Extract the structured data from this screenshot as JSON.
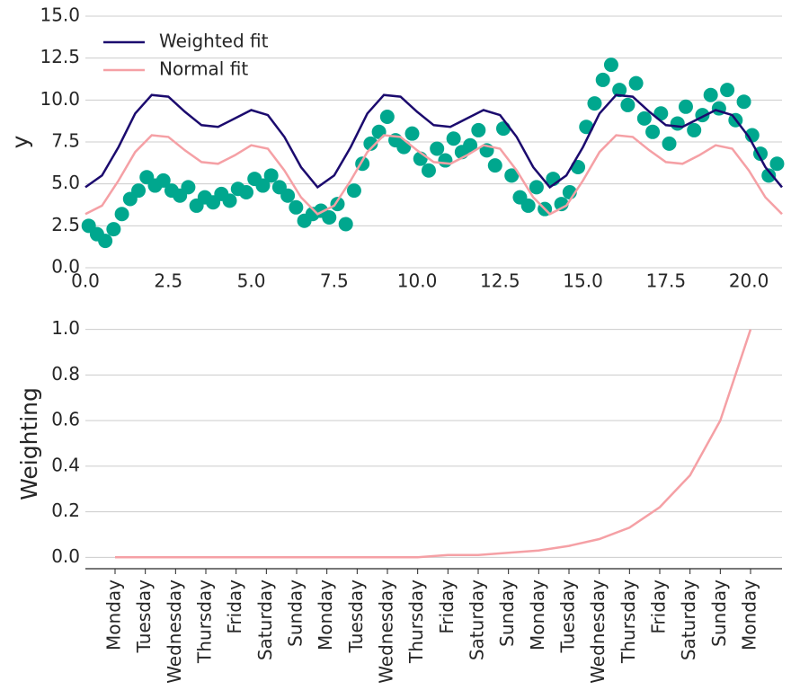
{
  "chart_data": [
    {
      "type": "line",
      "ylabel": "y",
      "xlim": [
        0,
        21
      ],
      "ylim": [
        0,
        15
      ],
      "xticks": [
        {
          "value": 0,
          "label": "0.0"
        },
        2.5,
        {
          "value": 5,
          "label": "5.0"
        },
        7.5,
        {
          "value": 10,
          "label": "10.0"
        },
        12.5,
        {
          "value": 15,
          "label": "15.0"
        },
        17.5,
        {
          "value": 20,
          "label": "20.0"
        }
      ],
      "yticks": [
        {
          "value": 0,
          "label": "0.0"
        },
        2.5,
        {
          "value": 5,
          "label": "5.0"
        },
        7.5,
        {
          "value": 10,
          "label": "10.0"
        },
        12.5,
        {
          "value": 15,
          "label": "15.0"
        }
      ],
      "grid": true,
      "legend": "upper left",
      "x": [
        0,
        0.5,
        1,
        1.5,
        2,
        2.5,
        3,
        3.5,
        4,
        4.5,
        5,
        5.5,
        6,
        6.5,
        7,
        7.5,
        8,
        8.5,
        9,
        9.5,
        10,
        10.5,
        11,
        11.5,
        12,
        12.5,
        13,
        13.5,
        14,
        14.5,
        15,
        15.5,
        16,
        16.5,
        17,
        17.5,
        18,
        18.5,
        19,
        19.5,
        20,
        20.5,
        21
      ],
      "series": [
        {
          "name": "Weighted fit",
          "color": "#1b0a6e",
          "values": [
            4.8,
            5.5,
            7.2,
            9.2,
            10.3,
            10.2,
            9.3,
            8.5,
            8.4,
            8.9,
            9.4,
            9.1,
            7.8,
            6.0,
            4.8,
            5.5,
            7.2,
            9.2,
            10.3,
            10.2,
            9.3,
            8.5,
            8.4,
            8.9,
            9.4,
            9.1,
            7.8,
            6.0,
            4.8,
            5.5,
            7.2,
            9.2,
            10.3,
            10.2,
            9.3,
            8.5,
            8.4,
            8.9,
            9.4,
            9.1,
            7.8,
            6.0,
            4.8
          ]
        },
        {
          "name": "Normal fit",
          "color": "#f5a0a5",
          "values": [
            3.2,
            3.7,
            5.2,
            6.9,
            7.9,
            7.8,
            7.0,
            6.3,
            6.2,
            6.7,
            7.3,
            7.1,
            5.8,
            4.2,
            3.2,
            3.7,
            5.2,
            6.9,
            7.9,
            7.8,
            7.0,
            6.3,
            6.2,
            6.7,
            7.3,
            7.1,
            5.8,
            4.2,
            3.2,
            3.7,
            5.2,
            6.9,
            7.9,
            7.8,
            7.0,
            6.3,
            6.2,
            6.7,
            7.3,
            7.1,
            5.8,
            4.2,
            3.2
          ]
        }
      ],
      "scatter": {
        "color": "#00a78e",
        "x": [
          0.1,
          0.35,
          0.6,
          0.85,
          1.1,
          1.35,
          1.6,
          1.85,
          2.1,
          2.35,
          2.6,
          2.85,
          3.1,
          3.35,
          3.6,
          3.85,
          4.1,
          4.35,
          4.6,
          4.85,
          5.1,
          5.35,
          5.6,
          5.85,
          6.1,
          6.35,
          6.6,
          6.85,
          7.1,
          7.35,
          7.6,
          7.85,
          8.1,
          8.35,
          8.6,
          8.85,
          9.1,
          9.35,
          9.6,
          9.85,
          10.1,
          10.35,
          10.6,
          10.85,
          11.1,
          11.35,
          11.6,
          11.85,
          12.1,
          12.35,
          12.6,
          12.85,
          13.1,
          13.35,
          13.6,
          13.85,
          14.1,
          14.35,
          14.6,
          14.85,
          15.1,
          15.35,
          15.6,
          15.85,
          16.1,
          16.35,
          16.6,
          16.85,
          17.1,
          17.35,
          17.6,
          17.85,
          18.1,
          18.35,
          18.6,
          18.85,
          19.1,
          19.35,
          19.6,
          19.85,
          20.1,
          20.35,
          20.6,
          20.85
        ],
        "values": [
          2.5,
          2.0,
          1.6,
          2.3,
          3.2,
          4.1,
          4.6,
          5.4,
          4.9,
          5.2,
          4.6,
          4.3,
          4.8,
          3.7,
          4.2,
          3.9,
          4.4,
          4.0,
          4.7,
          4.5,
          5.3,
          4.9,
          5.5,
          4.8,
          4.3,
          3.6,
          2.8,
          3.2,
          3.4,
          3.0,
          3.8,
          2.6,
          4.6,
          6.2,
          7.4,
          8.1,
          9.0,
          7.6,
          7.2,
          8.0,
          6.5,
          5.8,
          7.1,
          6.4,
          7.7,
          6.9,
          7.3,
          8.2,
          7.0,
          6.1,
          8.3,
          5.5,
          4.2,
          3.7,
          4.8,
          3.5,
          5.3,
          3.8,
          4.5,
          6.0,
          8.4,
          9.8,
          11.2,
          12.1,
          10.6,
          9.7,
          11.0,
          8.9,
          8.1,
          9.2,
          7.4,
          8.6,
          9.6,
          8.2,
          9.1,
          10.3,
          9.5,
          10.6,
          8.8,
          9.9,
          7.9,
          6.8,
          5.5,
          6.2
        ]
      }
    },
    {
      "type": "line",
      "ylabel": "Weighting",
      "color": "#f5a0a5",
      "categories": [
        "Monday",
        "Tuesday",
        "Wednesday",
        "Thursday",
        "Friday",
        "Saturday",
        "Sunday",
        "Monday",
        "Tuesday",
        "Wednesday",
        "Thursday",
        "Friday",
        "Saturday",
        "Sunday",
        "Monday",
        "Tuesday",
        "Wednesday",
        "Thursday",
        "Friday",
        "Saturday",
        "Sunday",
        "Monday"
      ],
      "values": [
        0,
        0,
        0,
        0,
        0,
        0,
        0,
        0,
        0,
        0,
        0,
        0.01,
        0.01,
        0.02,
        0.03,
        0.05,
        0.08,
        0.13,
        0.22,
        0.36,
        0.6,
        1.0
      ],
      "ylim": [
        -0.05,
        1.05
      ],
      "yticks": [
        {
          "value": 0,
          "label": "0.0"
        },
        {
          "value": 0.2,
          "label": "0.2"
        },
        {
          "value": 0.4,
          "label": "0.4"
        },
        {
          "value": 0.6,
          "label": "0.6"
        },
        {
          "value": 0.8,
          "label": "0.8"
        },
        {
          "value": 1,
          "label": "1.0"
        }
      ],
      "grid": true
    }
  ]
}
